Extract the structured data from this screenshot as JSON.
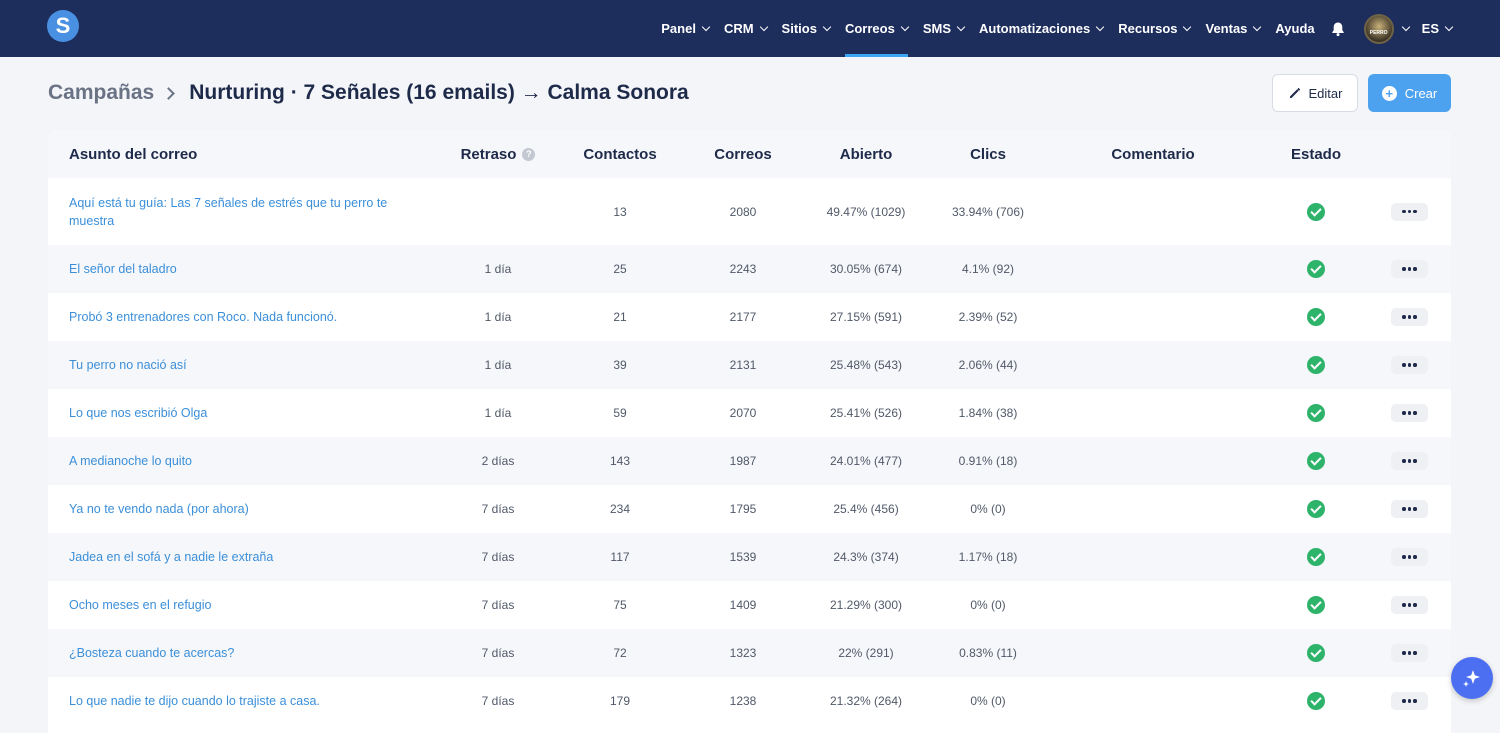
{
  "app": {
    "logo_letter": "S"
  },
  "nav": {
    "items": [
      {
        "label": "Panel",
        "dropdown": true,
        "active": false
      },
      {
        "label": "CRM",
        "dropdown": true,
        "active": false
      },
      {
        "label": "Sitios",
        "dropdown": true,
        "active": false
      },
      {
        "label": "Correos",
        "dropdown": true,
        "active": true
      },
      {
        "label": "SMS",
        "dropdown": true,
        "active": false
      },
      {
        "label": "Automatizaciones",
        "dropdown": true,
        "active": false
      },
      {
        "label": "Recursos",
        "dropdown": true,
        "active": false
      },
      {
        "label": "Ventas",
        "dropdown": true,
        "active": false
      },
      {
        "label": "Ayuda",
        "dropdown": false,
        "active": false
      }
    ],
    "avatar_text": "PERRO",
    "language": "ES"
  },
  "header": {
    "breadcrumb_root": "Campañas",
    "breadcrumb_current": "Nurturing · 7 Señales (16 emails) → Calma Sonora",
    "edit_label": "Editar",
    "create_label": "Crear"
  },
  "table": {
    "columns": {
      "subject": "Asunto del correo",
      "delay": "Retraso",
      "contacts": "Contactos",
      "emails": "Correos",
      "opened": "Abierto",
      "clicks": "Clics",
      "comment": "Comentario",
      "status": "Estado"
    },
    "rows": [
      {
        "subject": "Aquí está tu guía: Las 7 señales de estrés que tu perro te muestra",
        "delay": "",
        "contacts": "13",
        "emails": "2080",
        "opened": "49.47% (1029)",
        "clicks": "33.94% (706)",
        "comment": "",
        "status": "active"
      },
      {
        "subject": "El señor del taladro",
        "delay": "1 día",
        "contacts": "25",
        "emails": "2243",
        "opened": "30.05% (674)",
        "clicks": "4.1% (92)",
        "comment": "",
        "status": "active"
      },
      {
        "subject": "Probó 3 entrenadores con Roco. Nada funcionó.",
        "delay": "1 día",
        "contacts": "21",
        "emails": "2177",
        "opened": "27.15% (591)",
        "clicks": "2.39% (52)",
        "comment": "",
        "status": "active"
      },
      {
        "subject": "Tu perro no nació así",
        "delay": "1 día",
        "contacts": "39",
        "emails": "2131",
        "opened": "25.48% (543)",
        "clicks": "2.06% (44)",
        "comment": "",
        "status": "active"
      },
      {
        "subject": "Lo que nos escribió Olga",
        "delay": "1 día",
        "contacts": "59",
        "emails": "2070",
        "opened": "25.41% (526)",
        "clicks": "1.84% (38)",
        "comment": "",
        "status": "active"
      },
      {
        "subject": "A medianoche lo quito",
        "delay": "2 días",
        "contacts": "143",
        "emails": "1987",
        "opened": "24.01% (477)",
        "clicks": "0.91% (18)",
        "comment": "",
        "status": "active"
      },
      {
        "subject": "Ya no te vendo nada (por ahora)",
        "delay": "7 días",
        "contacts": "234",
        "emails": "1795",
        "opened": "25.4% (456)",
        "clicks": "0% (0)",
        "comment": "",
        "status": "active"
      },
      {
        "subject": "Jadea en el sofá y a nadie le extraña",
        "delay": "7 días",
        "contacts": "117",
        "emails": "1539",
        "opened": "24.3% (374)",
        "clicks": "1.17% (18)",
        "comment": "",
        "status": "active"
      },
      {
        "subject": "Ocho meses en el refugio",
        "delay": "7 días",
        "contacts": "75",
        "emails": "1409",
        "opened": "21.29% (300)",
        "clicks": "0% (0)",
        "comment": "",
        "status": "active"
      },
      {
        "subject": "¿Bosteza cuando te acercas?",
        "delay": "7 días",
        "contacts": "72",
        "emails": "1323",
        "opened": "22% (291)",
        "clicks": "0.83% (11)",
        "comment": "",
        "status": "active"
      },
      {
        "subject": "Lo que nadie te dijo cuando lo trajiste a casa.",
        "delay": "7 días",
        "contacts": "179",
        "emails": "1238",
        "opened": "21.32% (264)",
        "clicks": "0% (0)",
        "comment": "",
        "status": "active"
      }
    ]
  },
  "colors": {
    "nav_bg": "#1d2d5c",
    "accent": "#4da2f0",
    "link": "#3b8fd9",
    "status_ok": "#2eb36b",
    "row_alt": "#f6f7fa"
  }
}
